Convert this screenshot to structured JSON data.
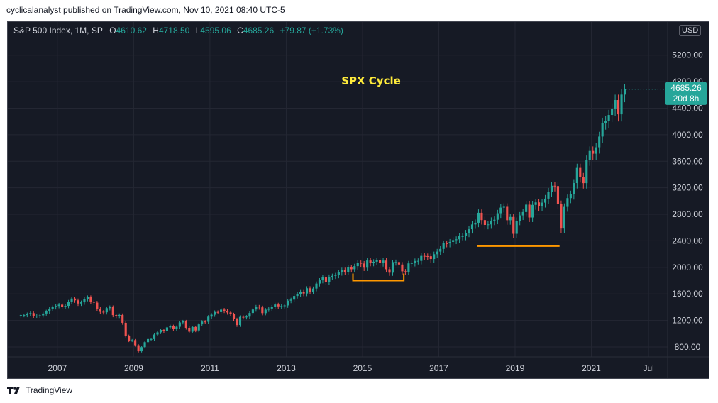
{
  "header": {
    "publish_line": "cyclicalanalyst published on TradingView.com, Nov 10, 2021 08:40 UTC-5"
  },
  "legend": {
    "symbol": "S&P 500 Index, 1M, SP",
    "open_label": "O",
    "open": "4610.62",
    "high_label": "H",
    "high": "4718.50",
    "low_label": "L",
    "low": "4595.06",
    "close_label": "C",
    "close": "4685.26",
    "change": "+79.87 (+1.73%)"
  },
  "currency_badge": "USD",
  "price_tag": {
    "price": "4685.26",
    "countdown": "20d 8h"
  },
  "footer": {
    "brand": "TradingView"
  },
  "colors": {
    "background": "#161a25",
    "up": "#26a69a",
    "down": "#ef5350",
    "grid": "#242733",
    "annotation": "#ff9800",
    "title": "#ffeb3b",
    "axis_text": "#d1d4dc"
  },
  "chart_data": {
    "type": "candlestick",
    "title": "SPX Cycle",
    "xlabel": "",
    "ylabel": "",
    "grid": true,
    "x_ticks": [
      "2007",
      "2009",
      "2011",
      "2013",
      "2015",
      "2017",
      "2019",
      "2021",
      "Jul"
    ],
    "x_tick_positions": [
      2007.0,
      2009.0,
      2011.0,
      2013.0,
      2015.0,
      2017.0,
      2019.0,
      2021.0,
      2022.5
    ],
    "xlim": [
      2005.7,
      2023.0
    ],
    "y_ticks": [
      800,
      1200,
      1600,
      2000,
      2400,
      2800,
      3200,
      3600,
      4000,
      4400,
      4800,
      5200
    ],
    "y_tick_labels": [
      "800.00",
      "1200.00",
      "1600.00",
      "2000.00",
      "2400.00",
      "2800.00",
      "3200.00",
      "3600.00",
      "4000.00",
      "4400.00",
      "4800.00",
      "5200.00"
    ],
    "ylim": [
      650,
      5700
    ],
    "series": [
      {
        "name": "S&P 500 Index",
        "interval": "1M",
        "start": "2006-01",
        "close": [
          1280,
          1280,
          1295,
          1310,
          1270,
          1270,
          1276,
          1304,
          1336,
          1378,
          1400,
          1418,
          1438,
          1406,
          1420,
          1482,
          1530,
          1503,
          1455,
          1473,
          1526,
          1549,
          1481,
          1468,
          1378,
          1330,
          1322,
          1385,
          1400,
          1280,
          1267,
          1282,
          1164,
          968,
          896,
          903,
          826,
          735,
          797,
          872,
          919,
          919,
          987,
          1020,
          1057,
          1036,
          1095,
          1115,
          1073,
          1104,
          1169,
          1186,
          1089,
          1030,
          1101,
          1049,
          1141,
          1183,
          1180,
          1257,
          1286,
          1327,
          1325,
          1363,
          1345,
          1320,
          1292,
          1218,
          1131,
          1253,
          1246,
          1257,
          1312,
          1365,
          1408,
          1397,
          1310,
          1362,
          1379,
          1406,
          1440,
          1412,
          1416,
          1426,
          1498,
          1514,
          1569,
          1597,
          1630,
          1606,
          1685,
          1632,
          1681,
          1756,
          1805,
          1848,
          1782,
          1859,
          1872,
          1883,
          1923,
          1960,
          1930,
          2003,
          1972,
          2018,
          2067,
          2058,
          1995,
          2104,
          2068,
          2085,
          2107,
          2063,
          2103,
          1972,
          1920,
          2079,
          2080,
          2043,
          1940,
          1932,
          2060,
          2065,
          2096,
          2098,
          2173,
          2170,
          2168,
          2126,
          2198,
          2238,
          2278,
          2363,
          2362,
          2384,
          2411,
          2423,
          2470,
          2471,
          2519,
          2575,
          2647,
          2673,
          2823,
          2713,
          2640,
          2648,
          2705,
          2718,
          2816,
          2901,
          2913,
          2711,
          2760,
          2506,
          2704,
          2784,
          2834,
          2946,
          2752,
          2942,
          2980,
          2926,
          2976,
          3037,
          3141,
          3231,
          3226,
          2954,
          2585,
          2912,
          3044,
          3100,
          3271,
          3500,
          3363,
          3270,
          3622,
          3756,
          3714,
          3811,
          3973,
          4181,
          4204,
          4298,
          4395,
          4523,
          4308,
          4605,
          4685
        ]
      }
    ],
    "annotations": [
      {
        "type": "horizontal_bracket",
        "from": "2014-10",
        "to": "2016-02",
        "y": 1800
      },
      {
        "type": "horizontal_segment",
        "from": "2018-01",
        "to": "2020-03",
        "y": 2320
      }
    ],
    "last_price": 4685.26
  }
}
